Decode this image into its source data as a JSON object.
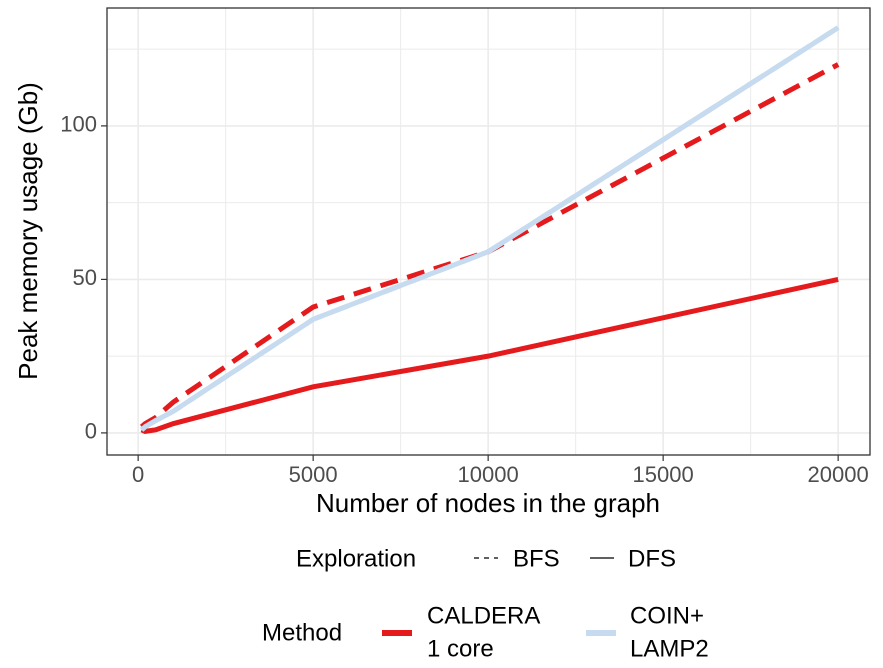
{
  "chart_data": {
    "type": "line",
    "x_label": "Number of nodes in the graph",
    "y_label": "Peak memory usage (Gb)",
    "x": [
      100,
      200,
      500,
      1000,
      5000,
      10000,
      20000
    ],
    "series": [
      {
        "method": 0,
        "exploration": 0,
        "values": [
          2,
          3,
          5,
          10,
          41,
          59,
          120
        ]
      },
      {
        "method": 0,
        "exploration": 1,
        "values": [
          1,
          0.5,
          1,
          3,
          15,
          25,
          50
        ]
      },
      {
        "method": 1,
        "exploration": 0,
        "values": [
          1,
          2,
          4,
          7,
          37,
          59,
          132
        ]
      },
      {
        "method": 1,
        "exploration": 1,
        "values": [
          1,
          2,
          4,
          7,
          37,
          59,
          132
        ]
      }
    ],
    "legends": [
      {
        "title": "Exploration",
        "items": [
          {
            "label": "BFS",
            "dash": "dashed"
          },
          {
            "label": "DFS",
            "dash": "solid"
          }
        ]
      },
      {
        "title": "Method",
        "items": [
          {
            "lines": [
              "CALDERA",
              "1 core"
            ],
            "color": "#e41a1c"
          },
          {
            "lines": [
              "COIN+",
              "LAMP2"
            ],
            "color": "#c6dbef"
          }
        ]
      }
    ],
    "xlim": [
      -890,
      20910
    ],
    "ylim": [
      -7.2,
      138.4
    ],
    "xticks": [
      0,
      5000,
      10000,
      15000,
      20000
    ],
    "yticks": [
      0,
      50,
      100
    ],
    "x_minor_grid": [
      2500,
      7500,
      12500,
      17500
    ],
    "y_minor_grid": [
      25,
      75,
      125
    ],
    "grid": true
  }
}
